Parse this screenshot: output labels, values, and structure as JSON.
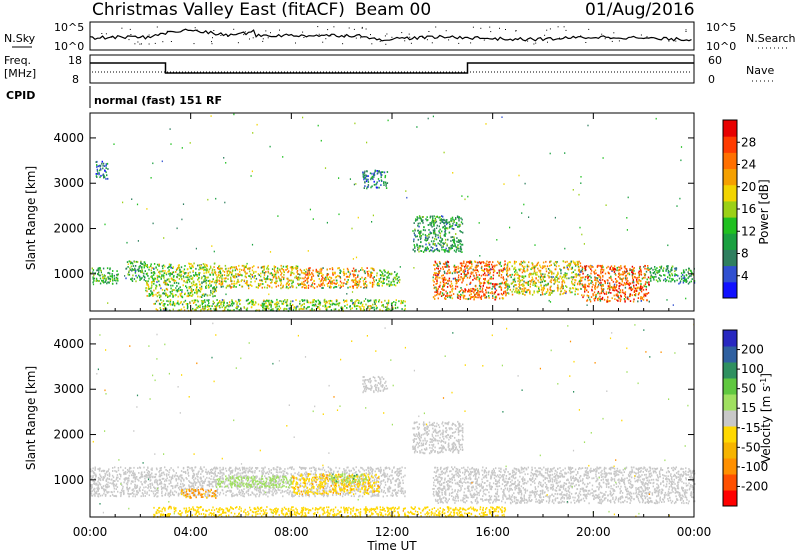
{
  "header": {
    "station": "Christmas Valley East (fitACF)",
    "beam": "Beam 00",
    "date": "01/Aug/2016"
  },
  "panels_top": {
    "nsky_label": "N.Sky",
    "nsearch_label": "N.Search",
    "nsky_ticks": [
      "10^5",
      "10^0"
    ],
    "nsearch_ticks": [
      "10^5",
      "10^0"
    ],
    "freq_label": "Freq.",
    "freq_unit": "[MHz]",
    "freq_ticks": [
      "18",
      "8"
    ],
    "nave_label": "Nave",
    "nave_ticks": [
      "60",
      "0"
    ],
    "cpid_label": "CPID",
    "cpid_text": "normal (fast) 151 RF"
  },
  "colors": {
    "power": [
      "#1010ff",
      "#3050d0",
      "#2f7f5f",
      "#1aa040",
      "#20c020",
      "#9bd016",
      "#f2d400",
      "#f5a000",
      "#ff7000",
      "#ff3b00",
      "#e80000"
    ],
    "velocity": [
      "#ff0000",
      "#ff5000",
      "#ff9000",
      "#f6b400",
      "#ffd800",
      "#c8c8c8",
      "#a0e060",
      "#60c840",
      "#2f9060",
      "#2f60a0",
      "#2828c0"
    ]
  },
  "chart_data": [
    {
      "type": "heatmap",
      "name": "power-panel",
      "xlabel": "Time UT",
      "ylabel": "Slant Range [km]",
      "xlim": [
        0,
        24
      ],
      "ylim": [
        180,
        4550
      ],
      "x_ticks": [
        "00:00",
        "04:00",
        "08:00",
        "12:00",
        "16:00",
        "20:00",
        "00:00"
      ],
      "y_ticks": [
        1000,
        2000,
        3000,
        4000
      ],
      "colorbar": {
        "label": "Power [dB]",
        "range": [
          0,
          32
        ],
        "ticks": [
          4,
          8,
          12,
          16,
          20,
          24,
          28
        ]
      },
      "features": [
        {
          "t0": 0.0,
          "t1": 1.1,
          "r0": 800,
          "r1": 1150,
          "level": 12
        },
        {
          "t0": 1.4,
          "t1": 2.2,
          "r0": 850,
          "r1": 1300,
          "level": 10
        },
        {
          "t0": 2.2,
          "t1": 5.0,
          "r0": 500,
          "r1": 1250,
          "level": 16
        },
        {
          "t0": 5.0,
          "t1": 8.5,
          "r0": 700,
          "r1": 1200,
          "level": 20
        },
        {
          "t0": 8.5,
          "t1": 11.3,
          "r0": 700,
          "r1": 1150,
          "level": 24
        },
        {
          "t0": 11.3,
          "t1": 12.3,
          "r0": 750,
          "r1": 1100,
          "level": 14
        },
        {
          "t0": 13.6,
          "t1": 16.5,
          "r0": 450,
          "r1": 1300,
          "level": 26
        },
        {
          "t0": 16.5,
          "t1": 19.5,
          "r0": 550,
          "r1": 1300,
          "level": 20
        },
        {
          "t0": 19.5,
          "t1": 22.2,
          "r0": 400,
          "r1": 1200,
          "level": 27
        },
        {
          "t0": 22.2,
          "t1": 23.2,
          "r0": 850,
          "r1": 1200,
          "level": 10
        },
        {
          "t0": 23.2,
          "t1": 24.0,
          "r0": 800,
          "r1": 1150,
          "level": 9
        },
        {
          "t0": 2.5,
          "t1": 12.5,
          "r0": 200,
          "r1": 450,
          "level": 16
        },
        {
          "t0": 12.8,
          "t1": 14.8,
          "r0": 1500,
          "r1": 2300,
          "level": 10
        },
        {
          "t0": 10.8,
          "t1": 11.8,
          "r0": 2900,
          "r1": 3300,
          "level": 6
        },
        {
          "t0": 0.2,
          "t1": 0.7,
          "r0": 3100,
          "r1": 3500,
          "level": 6
        }
      ]
    },
    {
      "type": "heatmap",
      "name": "velocity-panel",
      "xlabel": "Time UT",
      "ylabel": "Slant Range [km]",
      "xlim": [
        0,
        24
      ],
      "ylim": [
        180,
        4550
      ],
      "x_ticks": [
        "00:00",
        "04:00",
        "08:00",
        "12:00",
        "16:00",
        "20:00",
        "00:00"
      ],
      "y_ticks": [
        1000,
        2000,
        3000,
        4000
      ],
      "colorbar": {
        "label": "Velocity [m s^-1]",
        "ticks": [
          "200",
          "100",
          "50",
          "15",
          "-15",
          "-50",
          "-100",
          "-200"
        ]
      },
      "features": [
        {
          "t0": 0.0,
          "t1": 12.5,
          "r0": 650,
          "r1": 1300,
          "vel": 0
        },
        {
          "t0": 13.6,
          "t1": 24.0,
          "r0": 500,
          "r1": 1300,
          "vel": 0
        },
        {
          "t0": 3.6,
          "t1": 5.0,
          "r0": 620,
          "r1": 820,
          "vel": -60
        },
        {
          "t0": 5.0,
          "t1": 8.0,
          "r0": 850,
          "r1": 1100,
          "vel": 30
        },
        {
          "t0": 8.0,
          "t1": 11.5,
          "r0": 700,
          "r1": 1150,
          "vel": -40
        },
        {
          "t0": 9.5,
          "t1": 11.0,
          "r0": 950,
          "r1": 1150,
          "vel": 40
        },
        {
          "t0": 2.5,
          "t1": 16.5,
          "r0": 200,
          "r1": 420,
          "vel": -30
        },
        {
          "t0": 12.8,
          "t1": 14.8,
          "r0": 1600,
          "r1": 2300,
          "vel": 0
        },
        {
          "t0": 10.8,
          "t1": 11.8,
          "r0": 2950,
          "r1": 3300,
          "vel": 0
        }
      ]
    }
  ],
  "timeseries": {
    "freq_steps": [
      {
        "t0": 0.0,
        "t1": 3.0,
        "level": "high"
      },
      {
        "t0": 3.0,
        "t1": 15.0,
        "level": "low"
      },
      {
        "t0": 15.0,
        "t1": 24.0,
        "level": "high"
      }
    ]
  }
}
